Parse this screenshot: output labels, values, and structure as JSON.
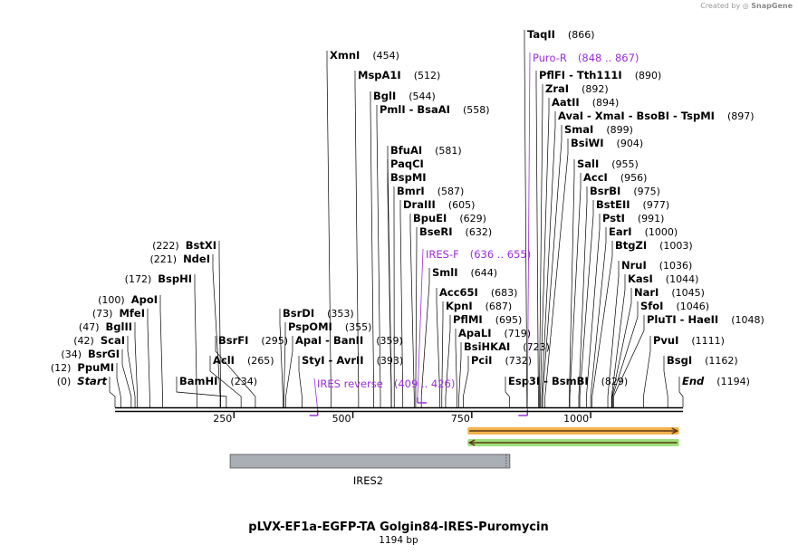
{
  "credit": {
    "prefix": "Created by",
    "brand": "SnapGene"
  },
  "title": "pLVX-EF1a-EGFP-TA Golgin84-IRES-Puromycin",
  "subtitle": "1194 bp",
  "sequence_length": 1194,
  "ticks": [
    "250",
    "500",
    "750",
    "1000"
  ],
  "enzymes": [
    {
      "name": "Start",
      "pos": "(0)",
      "bp": 0
    },
    {
      "name": "PpuMI",
      "pos": "(12)",
      "bp": 12
    },
    {
      "name": "BsrGI",
      "pos": "(34)",
      "bp": 34
    },
    {
      "name": "ScaI",
      "pos": "(42)",
      "bp": 42
    },
    {
      "name": "BglII",
      "pos": "(47)",
      "bp": 47
    },
    {
      "name": "MfeI",
      "pos": "(73)",
      "bp": 73
    },
    {
      "name": "ApoI",
      "pos": "(100)",
      "bp": 100
    },
    {
      "name": "BspHI",
      "pos": "(172)",
      "bp": 172
    },
    {
      "name": "NdeI",
      "pos": "(221)",
      "bp": 221
    },
    {
      "name": "BstXI",
      "pos": "(222)",
      "bp": 222
    },
    {
      "name": "BamHI",
      "pos": "(234)",
      "bp": 234
    },
    {
      "name": "AclI",
      "pos": "(265)",
      "bp": 265
    },
    {
      "name": "BsrFI",
      "pos": "(295)",
      "bp": 295
    },
    {
      "name": "BsrDI",
      "pos": "(353)",
      "bp": 353
    },
    {
      "name": "PspOMI",
      "pos": "(355)",
      "bp": 355
    },
    {
      "name": "ApaI - BanII",
      "pos": "(359)",
      "bp": 359
    },
    {
      "name": "StyI - AvrII",
      "pos": "(393)",
      "bp": 393
    },
    {
      "name": "XmnI",
      "pos": "(454)",
      "bp": 454
    },
    {
      "name": "MspA1I",
      "pos": "(512)",
      "bp": 512
    },
    {
      "name": "BglI",
      "pos": "(544)",
      "bp": 544
    },
    {
      "name": "PmlI - BsaAI",
      "pos": "(558)",
      "bp": 558
    },
    {
      "name": "BfuAI",
      "pos": "(581)",
      "bp": 581
    },
    {
      "name": "PaqCI",
      "pos": "",
      "bp": 581
    },
    {
      "name": "BspMI",
      "pos": "",
      "bp": 581
    },
    {
      "name": "BmrI",
      "pos": "(587)",
      "bp": 587
    },
    {
      "name": "DraIII",
      "pos": "(605)",
      "bp": 605
    },
    {
      "name": "BpuEI",
      "pos": "(629)",
      "bp": 629
    },
    {
      "name": "BseRI",
      "pos": "(632)",
      "bp": 632
    },
    {
      "name": "SmlI",
      "pos": "(644)",
      "bp": 644
    },
    {
      "name": "Acc65I",
      "pos": "(683)",
      "bp": 683
    },
    {
      "name": "KpnI",
      "pos": "(687)",
      "bp": 687
    },
    {
      "name": "PflMI",
      "pos": "(695)",
      "bp": 695
    },
    {
      "name": "ApaLI",
      "pos": "(719)",
      "bp": 719
    },
    {
      "name": "BsiHKAI",
      "pos": "(723)",
      "bp": 723
    },
    {
      "name": "PciI",
      "pos": "(732)",
      "bp": 732
    },
    {
      "name": "Esp3I - BsmBI",
      "pos": "(829)",
      "bp": 829
    },
    {
      "name": "TaqII",
      "pos": "(866)",
      "bp": 866
    },
    {
      "name": "PflFI - Tth111I",
      "pos": "(890)",
      "bp": 890
    },
    {
      "name": "ZraI",
      "pos": "(892)",
      "bp": 892
    },
    {
      "name": "AatII",
      "pos": "(894)",
      "bp": 894
    },
    {
      "name": "AvaI - XmaI - BsoBI - TspMI",
      "pos": "(897)",
      "bp": 897
    },
    {
      "name": "SmaI",
      "pos": "(899)",
      "bp": 899
    },
    {
      "name": "BsiWI",
      "pos": "(904)",
      "bp": 904
    },
    {
      "name": "SalI",
      "pos": "(955)",
      "bp": 955
    },
    {
      "name": "AccI",
      "pos": "(956)",
      "bp": 956
    },
    {
      "name": "BsrBI",
      "pos": "(975)",
      "bp": 975
    },
    {
      "name": "BstEII",
      "pos": "(977)",
      "bp": 977
    },
    {
      "name": "PstI",
      "pos": "(991)",
      "bp": 991
    },
    {
      "name": "EarI",
      "pos": "(1000)",
      "bp": 1000
    },
    {
      "name": "BtgZI",
      "pos": "(1003)",
      "bp": 1003
    },
    {
      "name": "NruI",
      "pos": "(1036)",
      "bp": 1036
    },
    {
      "name": "KasI",
      "pos": "(1044)",
      "bp": 1044
    },
    {
      "name": "NarI",
      "pos": "(1045)",
      "bp": 1045
    },
    {
      "name": "SfoI",
      "pos": "(1046)",
      "bp": 1046
    },
    {
      "name": "PluTI - HaeII",
      "pos": "(1048)",
      "bp": 1048
    },
    {
      "name": "PvuI",
      "pos": "(1111)",
      "bp": 1111
    },
    {
      "name": "BsgI",
      "pos": "(1162)",
      "bp": 1162
    },
    {
      "name": "End",
      "pos": "(1194)",
      "bp": 1194
    }
  ],
  "primers": [
    {
      "name": "IRES reverse",
      "range": "(409 .. 426)",
      "start": 409,
      "end": 426,
      "dir": "reverse"
    },
    {
      "name": "IRES-F",
      "range": "(636 .. 655)",
      "start": 636,
      "end": 655,
      "dir": "forward"
    },
    {
      "name": "Puro-R",
      "range": "(848 .. 867)",
      "start": 848,
      "end": 867,
      "dir": "reverse"
    }
  ],
  "features": [
    {
      "name": "IRES2",
      "start": 242,
      "end": 830,
      "color": "#a9adb4"
    }
  ],
  "orfs": [
    {
      "start": 745,
      "end": 1182,
      "dir": "forward",
      "color": "#f2b24b"
    },
    {
      "start": 745,
      "end": 1182,
      "dir": "reverse",
      "color": "#9de07a"
    }
  ],
  "colors": {
    "primer": "#9b30d9",
    "line": "#000000"
  }
}
